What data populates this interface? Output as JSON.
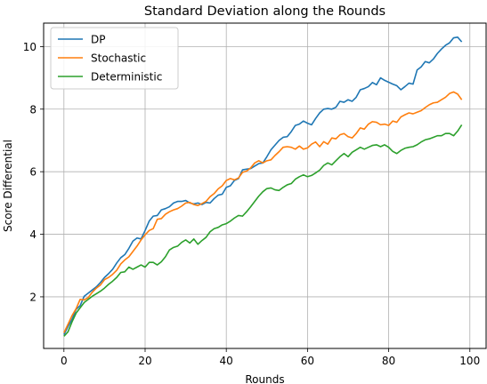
{
  "chart_data": {
    "type": "line",
    "title": "Standard Deviation along the Rounds",
    "xlabel": "Rounds",
    "ylabel": "Score Differential",
    "xlim": [
      -5,
      104
    ],
    "ylim": [
      0.35,
      10.75
    ],
    "xticks": [
      0,
      20,
      40,
      60,
      80,
      100
    ],
    "yticks": [
      2,
      4,
      6,
      8,
      10
    ],
    "grid": true,
    "legend_position": "top-left",
    "x_start": 0,
    "x_step": 1,
    "series": [
      {
        "name": "DP",
        "color": "#1f77b4",
        "values": [
          0.79,
          1.05,
          1.28,
          1.6,
          1.72,
          2.02,
          2.12,
          2.22,
          2.32,
          2.46,
          2.62,
          2.74,
          2.88,
          3.08,
          3.25,
          3.35,
          3.55,
          3.78,
          3.88,
          3.85,
          4.12,
          4.42,
          4.58,
          4.6,
          4.78,
          4.82,
          4.88,
          5.0,
          5.05,
          5.05,
          5.08,
          5.0,
          4.97,
          5.0,
          4.95,
          5.02,
          5.0,
          5.14,
          5.25,
          5.28,
          5.5,
          5.55,
          5.72,
          5.78,
          6.06,
          6.08,
          6.1,
          6.18,
          6.26,
          6.28,
          6.48,
          6.7,
          6.85,
          7.0,
          7.1,
          7.12,
          7.28,
          7.48,
          7.52,
          7.62,
          7.55,
          7.5,
          7.7,
          7.88,
          8.0,
          8.02,
          8.0,
          8.06,
          8.25,
          8.22,
          8.3,
          8.25,
          8.38,
          8.62,
          8.66,
          8.72,
          8.85,
          8.78,
          9.0,
          8.92,
          8.86,
          8.8,
          8.75,
          8.62,
          8.72,
          8.83,
          8.8,
          9.25,
          9.35,
          9.52,
          9.48,
          9.6,
          9.78,
          9.92,
          10.04,
          10.12,
          10.28,
          10.3,
          10.15
        ]
      },
      {
        "name": "Stochastic",
        "color": "#ff7f0e",
        "values": [
          0.85,
          1.12,
          1.4,
          1.62,
          1.92,
          1.9,
          1.98,
          2.15,
          2.28,
          2.38,
          2.55,
          2.62,
          2.72,
          2.85,
          3.05,
          3.18,
          3.28,
          3.45,
          3.62,
          3.82,
          3.98,
          4.12,
          4.18,
          4.48,
          4.5,
          4.64,
          4.72,
          4.78,
          4.82,
          4.9,
          5.0,
          5.02,
          4.95,
          4.92,
          4.98,
          5.05,
          5.2,
          5.3,
          5.45,
          5.55,
          5.72,
          5.78,
          5.74,
          5.8,
          5.98,
          6.02,
          6.12,
          6.28,
          6.35,
          6.28,
          6.35,
          6.38,
          6.52,
          6.64,
          6.78,
          6.8,
          6.78,
          6.72,
          6.82,
          6.72,
          6.76,
          6.88,
          6.95,
          6.8,
          6.96,
          6.88,
          7.08,
          7.05,
          7.18,
          7.22,
          7.12,
          7.08,
          7.22,
          7.4,
          7.36,
          7.52,
          7.6,
          7.58,
          7.5,
          7.52,
          7.48,
          7.62,
          7.58,
          7.75,
          7.82,
          7.88,
          7.85,
          7.9,
          7.95,
          8.05,
          8.14,
          8.2,
          8.22,
          8.3,
          8.38,
          8.5,
          8.55,
          8.48,
          8.3
        ]
      },
      {
        "name": "Deterministic",
        "color": "#2ca02c",
        "values": [
          0.74,
          0.88,
          1.2,
          1.48,
          1.65,
          1.82,
          1.92,
          2.02,
          2.1,
          2.18,
          2.28,
          2.4,
          2.5,
          2.62,
          2.78,
          2.8,
          2.95,
          2.88,
          2.95,
          3.02,
          2.95,
          3.1,
          3.1,
          3.02,
          3.12,
          3.28,
          3.5,
          3.58,
          3.62,
          3.74,
          3.82,
          3.72,
          3.85,
          3.68,
          3.8,
          3.9,
          4.08,
          4.18,
          4.22,
          4.3,
          4.34,
          4.42,
          4.52,
          4.6,
          4.58,
          4.72,
          4.88,
          5.05,
          5.22,
          5.36,
          5.46,
          5.48,
          5.42,
          5.4,
          5.5,
          5.58,
          5.62,
          5.76,
          5.84,
          5.9,
          5.84,
          5.88,
          5.96,
          6.05,
          6.2,
          6.28,
          6.22,
          6.35,
          6.48,
          6.58,
          6.48,
          6.62,
          6.7,
          6.78,
          6.72,
          6.78,
          6.84,
          6.86,
          6.8,
          6.86,
          6.78,
          6.65,
          6.58,
          6.68,
          6.75,
          6.78,
          6.8,
          6.86,
          6.95,
          7.02,
          7.05,
          7.1,
          7.15,
          7.15,
          7.22,
          7.22,
          7.15,
          7.3,
          7.5
        ]
      }
    ]
  }
}
